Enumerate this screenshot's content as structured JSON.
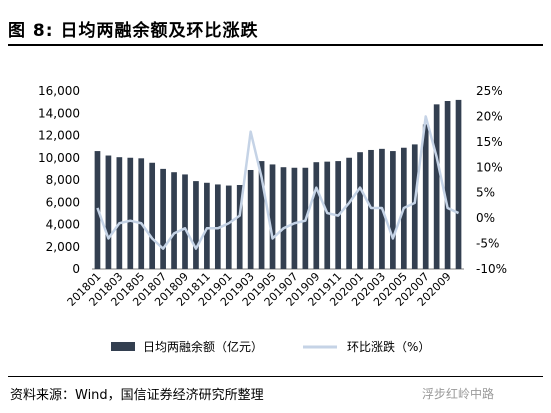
{
  "title": "图 8:  日均两融余额及环比涨跌",
  "source": "资料来源：Wind，国信证券经济研究所整理",
  "watermark": "浮步红岭中路",
  "chart_data": {
    "type": "bar",
    "categories": [
      "201801",
      "201802",
      "201803",
      "201804",
      "201805",
      "201806",
      "201807",
      "201808",
      "201809",
      "201810",
      "201811",
      "201812",
      "201901",
      "201902",
      "201903",
      "201904",
      "201905",
      "201906",
      "201907",
      "201908",
      "201909",
      "201910",
      "201911",
      "201912",
      "202001",
      "202002",
      "202003",
      "202004",
      "202005",
      "202006",
      "202007",
      "202008",
      "202009",
      "202010"
    ],
    "x_tick_labels": [
      "201801",
      "201803",
      "201805",
      "201807",
      "201809",
      "201811",
      "201901",
      "201903",
      "201905",
      "201907",
      "201909",
      "201911",
      "202001",
      "202003",
      "202005",
      "202007",
      "202009"
    ],
    "y_left": {
      "min": 0,
      "max": 16000,
      "ticks": [
        "0",
        "2,000",
        "4,000",
        "6,000",
        "8,000",
        "10,000",
        "12,000",
        "14,000",
        "16,000"
      ]
    },
    "y_right": {
      "min": -10,
      "max": 25,
      "ticks": [
        "-10%",
        "-5%",
        "0%",
        "5%",
        "10%",
        "15%",
        "20%",
        "25%"
      ]
    },
    "series": [
      {
        "name": "日均两融余额（亿元）",
        "type": "bar",
        "axis": "left",
        "color": "#333f50",
        "values": [
          10600,
          10200,
          10050,
          10000,
          9950,
          9550,
          9000,
          8700,
          8500,
          7900,
          7750,
          7600,
          7500,
          7550,
          8900,
          9700,
          9400,
          9150,
          9100,
          9100,
          9600,
          9650,
          9700,
          10000,
          10500,
          10700,
          10800,
          10600,
          10900,
          11200,
          13000,
          14800,
          15100,
          15200
        ]
      },
      {
        "name": "环比涨跌（%）",
        "type": "line",
        "axis": "right",
        "color": "#c5d3e6",
        "values": [
          2,
          -4,
          -1,
          -0.5,
          -1,
          -4,
          -6,
          -3,
          -2,
          -6,
          -2,
          -2,
          -1,
          0.5,
          17,
          8,
          -4,
          -2,
          -1,
          -0.5,
          6,
          1,
          0.5,
          3,
          6,
          2,
          2,
          -4,
          2,
          3,
          20,
          12,
          2,
          1
        ]
      }
    ],
    "legend": {
      "position": "bottom",
      "bar_label": "日均两融余额（亿元）",
      "line_label": "环比涨跌（%）"
    },
    "grid": false
  }
}
